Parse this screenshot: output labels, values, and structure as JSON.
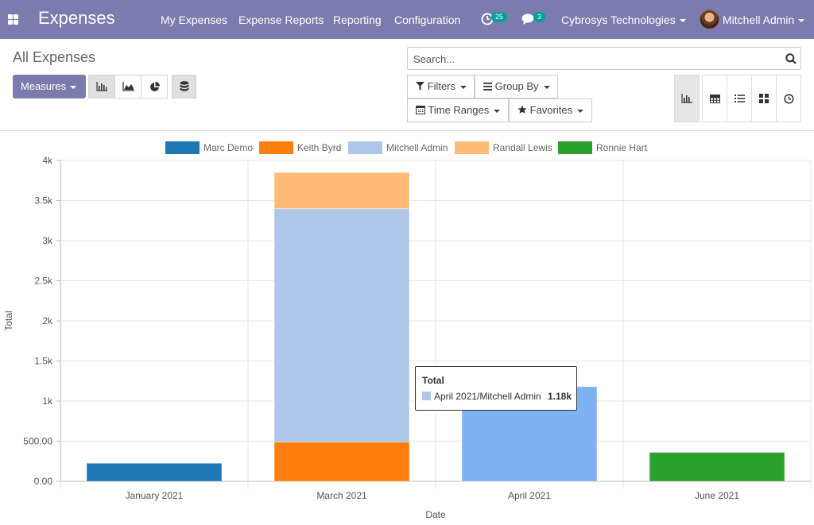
{
  "navbar": {
    "app_title": "Expenses",
    "menu": [
      "My Expenses",
      "Expense Reports",
      "Reporting",
      "Configuration"
    ],
    "activity_count": "25",
    "message_count": "3",
    "company": "Cybrosys Technologies",
    "user": "Mitchell Admin"
  },
  "control_panel": {
    "title": "All Expenses",
    "measures_label": "Measures",
    "search_placeholder": "Search...",
    "filters_label": "Filters",
    "group_by_label": "Group By",
    "time_ranges_label": "Time Ranges",
    "favorites_label": "Favorites"
  },
  "colors": {
    "brand": "#7c7bad",
    "badge": "#00a09d"
  },
  "chart_data": {
    "type": "bar",
    "stacked": true,
    "categories": [
      "January 2021",
      "March 2021",
      "April 2021",
      "June 2021"
    ],
    "series": [
      {
        "name": "Marc Demo",
        "color": "#1f77b4",
        "values": [
          225,
          0,
          0,
          0
        ]
      },
      {
        "name": "Keith Byrd",
        "color": "#ff7f0e",
        "values": [
          0,
          490,
          0,
          0
        ]
      },
      {
        "name": "Mitchell Admin",
        "color": "#aec7e8",
        "values": [
          0,
          2910,
          1180,
          0
        ]
      },
      {
        "name": "Randall Lewis",
        "color": "#ffbb78",
        "values": [
          0,
          450,
          0,
          0
        ]
      },
      {
        "name": "Ronnie Hart",
        "color": "#2ca02c",
        "values": [
          0,
          0,
          0,
          360
        ]
      }
    ],
    "yticks": [
      "0.00",
      "500.00",
      "1k",
      "1.5k",
      "2k",
      "2.5k",
      "3k",
      "3.5k",
      "4k"
    ],
    "ylim": [
      0,
      4000
    ],
    "xlabel": "Date",
    "ylabel": "Total",
    "legend_position": "top",
    "highlighted_bar_color": "#7eb2f0",
    "tooltip": {
      "title": "Total",
      "label": "April 2021/Mitchell Admin",
      "value": "1.18k"
    }
  }
}
